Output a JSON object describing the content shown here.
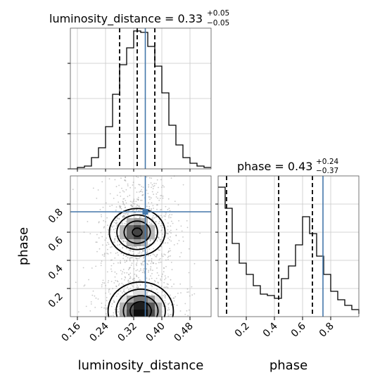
{
  "chart_data": [
    {
      "type": "histogram",
      "title": "luminosity_distance = 0.33",
      "title_sup": "+0.05",
      "title_sub": "−0.05",
      "xlim": [
        0.14,
        0.54
      ],
      "ylim": [
        0,
        1.0
      ],
      "y_tick_values": [
        0.0,
        0.25,
        0.5,
        0.75
      ],
      "grid": true,
      "bins": [
        0.14,
        0.16,
        0.18,
        0.2,
        0.22,
        0.24,
        0.26,
        0.28,
        0.3,
        0.32,
        0.34,
        0.36,
        0.38,
        0.4,
        0.42,
        0.44,
        0.46,
        0.48,
        0.5,
        0.52
      ],
      "counts": [
        0.0,
        0.01,
        0.02,
        0.08,
        0.15,
        0.3,
        0.53,
        0.74,
        0.86,
        0.98,
        0.97,
        0.87,
        0.73,
        0.54,
        0.31,
        0.17,
        0.08,
        0.04,
        0.02,
        0.01
      ],
      "quantiles": [
        0.28,
        0.33,
        0.38
      ],
      "truth": 0.353
    },
    {
      "type": "histogram",
      "title": "phase = 0.43",
      "title_sup": "+0.24",
      "title_sub": "−0.37",
      "xlim": [
        0.0,
        1.0
      ],
      "ylim": [
        0,
        1.0
      ],
      "x_tick_values": [
        0.2,
        0.4,
        0.6,
        0.8
      ],
      "xlabel": "phase",
      "grid": true,
      "bins": [
        0.0,
        0.05,
        0.1,
        0.15,
        0.2,
        0.25,
        0.3,
        0.35,
        0.4,
        0.45,
        0.5,
        0.55,
        0.6,
        0.65,
        0.7,
        0.75,
        0.8,
        0.85,
        0.9,
        0.95,
        1.0
      ],
      "counts": [
        0.92,
        0.77,
        0.52,
        0.38,
        0.3,
        0.22,
        0.16,
        0.15,
        0.13,
        0.27,
        0.36,
        0.51,
        0.71,
        0.59,
        0.43,
        0.3,
        0.18,
        0.12,
        0.08,
        0.05,
        0.02
      ],
      "quantiles": [
        0.06,
        0.43,
        0.67
      ],
      "truth": 0.745
    },
    {
      "type": "heatmap",
      "xlim": [
        0.14,
        0.54
      ],
      "ylim": [
        0.0,
        1.0
      ],
      "x_tick_values": [
        0.16,
        0.24,
        0.32,
        0.4,
        0.48
      ],
      "y_tick_values": [
        0.2,
        0.4,
        0.6,
        0.8
      ],
      "xlabel": "luminosity_distance",
      "ylabel": "phase",
      "grid": true,
      "truth": {
        "x": 0.353,
        "y": 0.745
      },
      "density_peaks": [
        {
          "x": 0.33,
          "y": 0.6,
          "sx": 0.04,
          "sy": 0.085,
          "amp": 0.85
        },
        {
          "x": 0.34,
          "y": 0.04,
          "sx": 0.045,
          "sy": 0.1,
          "amp": 1.0
        }
      ]
    }
  ],
  "labels": {
    "top_title_main": "luminosity_distance = 0.33",
    "top_title_sup": "+0.05",
    "top_title_sub": "−0.05",
    "right_title_main": "phase = 0.43",
    "right_title_sup": "+0.24",
    "right_title_sub": "−0.37",
    "x_label_left": "luminosity_distance",
    "x_label_right": "phase",
    "y_label_left": "phase",
    "ld_ticks": [
      "0.16",
      "0.24",
      "0.32",
      "0.40",
      "0.48"
    ],
    "phase_y_ticks": [
      "0.2",
      "0.4",
      "0.6",
      "0.8"
    ],
    "phase_x_ticks": [
      "0.2",
      "0.4",
      "0.6",
      "0.8"
    ]
  },
  "colors": {
    "truth": "#4477aa",
    "line": "#000000",
    "grid": "#c8c8c8",
    "scatter": "#9a9a9a"
  }
}
